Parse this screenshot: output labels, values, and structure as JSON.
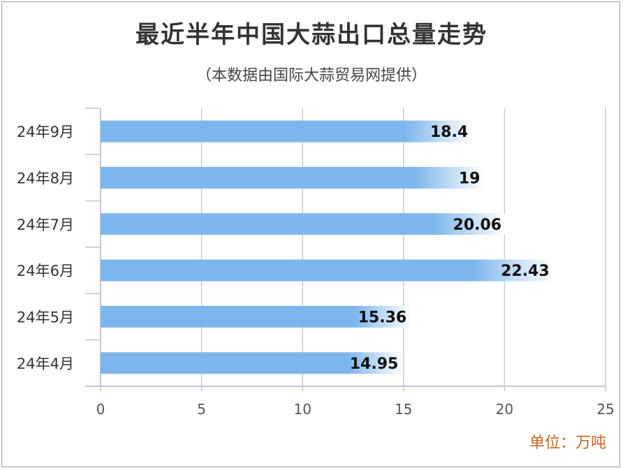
{
  "chart_data": {
    "type": "bar",
    "orientation": "horizontal",
    "title": "最近半年中国大蒜出口总量走势",
    "subtitle": "（本数据由国际大蒜贸易网提供）",
    "unit_label": "单位：万吨",
    "categories": [
      "24年9月",
      "24年8月",
      "24年7月",
      "24年6月",
      "24年5月",
      "24年4月"
    ],
    "values": [
      18.4,
      19,
      20.06,
      22.43,
      15.36,
      14.95
    ],
    "value_labels": [
      "18.4",
      "19",
      "20.06",
      "22.43",
      "15.36",
      "14.95"
    ],
    "x_ticks": [
      "0",
      "5",
      "10",
      "15",
      "20",
      "25"
    ],
    "xlim": [
      0,
      25
    ],
    "grid": "vertical",
    "legend": "none",
    "colors": {
      "bar": "#7db6ec",
      "bar_end": "#ffffff",
      "grid": "#cccccc",
      "axis": "#bfc7d5",
      "unit": "#c8641e"
    }
  }
}
